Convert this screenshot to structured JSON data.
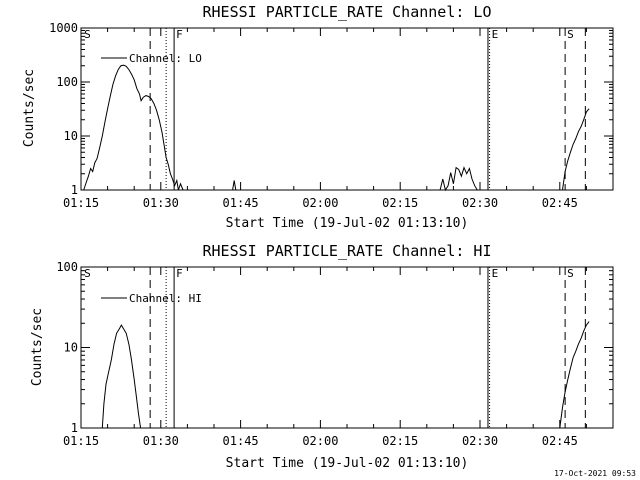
{
  "footer": {
    "timestamp": "17-Oct-2021 09:53"
  },
  "chart_data": [
    {
      "type": "line",
      "title": "RHESSI PARTICLE_RATE Channel: LO",
      "xlabel": "Start Time (19-Jul-02 01:13:10)",
      "ylabel": "Counts/sec",
      "yscale": "log",
      "ylim": [
        1,
        1000
      ],
      "y_ticks": [
        {
          "value": 1,
          "label": "1"
        },
        {
          "value": 10,
          "label": "10"
        },
        {
          "value": 100,
          "label": "100"
        },
        {
          "value": 1000,
          "label": "1000"
        }
      ],
      "xlim_minutes": [
        75,
        175
      ],
      "x_ticks": [
        {
          "value": 75,
          "label": "01:15"
        },
        {
          "value": 90,
          "label": "01:30"
        },
        {
          "value": 105,
          "label": "01:45"
        },
        {
          "value": 120,
          "label": "02:00"
        },
        {
          "value": 135,
          "label": "02:15"
        },
        {
          "value": 150,
          "label": "02:30"
        },
        {
          "value": 165,
          "label": "02:45"
        }
      ],
      "legend": {
        "label": "Channel: LO",
        "position": "top-left"
      },
      "markers": [
        {
          "x": 75.2,
          "label": "S",
          "style": "label-only"
        },
        {
          "x": 88.0,
          "label": "",
          "style": "dashed"
        },
        {
          "x": 91.0,
          "label": "",
          "style": "dotted"
        },
        {
          "x": 92.5,
          "label": "F",
          "style": "solid"
        },
        {
          "x": 151.5,
          "label": "",
          "style": "solid"
        },
        {
          "x": 151.8,
          "label": "E",
          "style": "dotted"
        },
        {
          "x": 166.0,
          "label": "S",
          "style": "dashed"
        },
        {
          "x": 169.8,
          "label": "",
          "style": "dashed"
        }
      ],
      "series": [
        {
          "name": "Channel: LO",
          "segments": [
            [
              [
                75.5,
                1
              ],
              [
                76,
                1.4
              ],
              [
                76.4,
                1.8
              ],
              [
                76.8,
                2.5
              ],
              [
                77.2,
                2.2
              ],
              [
                77.6,
                3.2
              ],
              [
                78,
                3.8
              ],
              [
                78.5,
                6
              ],
              [
                79,
                10
              ],
              [
                79.5,
                18
              ],
              [
                80,
                32
              ],
              [
                80.5,
                55
              ],
              [
                81,
                90
              ],
              [
                81.5,
                130
              ],
              [
                82,
                170
              ],
              [
                82.5,
                200
              ],
              [
                83,
                205
              ],
              [
                83.5,
                195
              ],
              [
                84,
                170
              ],
              [
                84.5,
                140
              ],
              [
                85,
                110
              ],
              [
                85.5,
                75
              ],
              [
                86,
                60
              ],
              [
                86.3,
                45
              ],
              [
                86.7,
                52
              ],
              [
                87.2,
                56
              ],
              [
                87.7,
                54
              ],
              [
                88.2,
                49
              ],
              [
                88.7,
                40
              ],
              [
                89.2,
                30
              ],
              [
                89.7,
                20
              ],
              [
                90.2,
                12
              ],
              [
                90.6,
                7
              ],
              [
                91,
                4
              ],
              [
                91.4,
                3
              ],
              [
                91.8,
                2
              ],
              [
                92.2,
                1.6
              ],
              [
                92.6,
                1.2
              ],
              [
                93,
                1.5
              ],
              [
                93.3,
                1
              ],
              [
                93.7,
                1.3
              ],
              [
                94.2,
                1
              ]
            ],
            [
              [
                103.5,
                1
              ],
              [
                103.8,
                1.5
              ],
              [
                104.1,
                1
              ]
            ],
            [
              [
                142.5,
                1
              ],
              [
                143,
                1.6
              ],
              [
                143.5,
                1
              ],
              [
                144,
                1.2
              ],
              [
                144.5,
                2.1
              ],
              [
                145,
                1.3
              ],
              [
                145.5,
                2.6
              ],
              [
                146,
                2.4
              ],
              [
                146.5,
                1.8
              ],
              [
                147,
                2.6
              ],
              [
                147.5,
                2
              ],
              [
                148,
                2.5
              ],
              [
                148.5,
                1.6
              ],
              [
                149,
                1.2
              ],
              [
                149.5,
                1
              ]
            ],
            [
              [
                165.5,
                1
              ],
              [
                166,
                2.2
              ],
              [
                166.5,
                3.5
              ],
              [
                167,
                5
              ],
              [
                167.5,
                7
              ],
              [
                168,
                9
              ],
              [
                168.5,
                12
              ],
              [
                169,
                15
              ],
              [
                169.5,
                20
              ],
              [
                170,
                28
              ],
              [
                170.5,
                32
              ]
            ]
          ]
        }
      ]
    },
    {
      "type": "line",
      "title": "RHESSI PARTICLE_RATE Channel: HI",
      "xlabel": "Start Time (19-Jul-02 01:13:10)",
      "ylabel": "Counts/sec",
      "yscale": "log",
      "ylim": [
        1,
        100
      ],
      "y_ticks": [
        {
          "value": 1,
          "label": "1"
        },
        {
          "value": 10,
          "label": "10"
        },
        {
          "value": 100,
          "label": "100"
        }
      ],
      "xlim_minutes": [
        75,
        175
      ],
      "x_ticks": [
        {
          "value": 75,
          "label": "01:15"
        },
        {
          "value": 90,
          "label": "01:30"
        },
        {
          "value": 105,
          "label": "01:45"
        },
        {
          "value": 120,
          "label": "02:00"
        },
        {
          "value": 135,
          "label": "02:15"
        },
        {
          "value": 150,
          "label": "02:30"
        },
        {
          "value": 165,
          "label": "02:45"
        }
      ],
      "legend": {
        "label": "Channel: HI",
        "position": "top-left"
      },
      "markers": [
        {
          "x": 75.2,
          "label": "S",
          "style": "label-only"
        },
        {
          "x": 88.0,
          "label": "",
          "style": "dashed"
        },
        {
          "x": 91.0,
          "label": "",
          "style": "dotted"
        },
        {
          "x": 92.5,
          "label": "F",
          "style": "solid"
        },
        {
          "x": 151.5,
          "label": "",
          "style": "solid"
        },
        {
          "x": 151.8,
          "label": "E",
          "style": "dotted"
        },
        {
          "x": 166.0,
          "label": "S",
          "style": "dashed"
        },
        {
          "x": 169.8,
          "label": "",
          "style": "dashed"
        }
      ],
      "series": [
        {
          "name": "Channel: HI",
          "segments": [
            [
              [
                79,
                1
              ],
              [
                79.3,
                2
              ],
              [
                79.7,
                3.5
              ],
              [
                80.2,
                5
              ],
              [
                80.7,
                7
              ],
              [
                81.2,
                11
              ],
              [
                81.7,
                15
              ],
              [
                82.2,
                17
              ],
              [
                82.6,
                19
              ],
              [
                83,
                17
              ],
              [
                83.5,
                15
              ],
              [
                84,
                11
              ],
              [
                84.5,
                7
              ],
              [
                85,
                4
              ],
              [
                85.4,
                2.5
              ],
              [
                85.8,
                1.5
              ],
              [
                86.2,
                1
              ]
            ],
            [
              [
                165,
                1
              ],
              [
                165.5,
                1.8
              ],
              [
                166,
                2.8
              ],
              [
                166.5,
                4
              ],
              [
                167,
                5.5
              ],
              [
                167.5,
                7.5
              ],
              [
                168,
                9
              ],
              [
                168.5,
                11
              ],
              [
                169,
                13
              ],
              [
                169.5,
                16
              ],
              [
                170,
                19
              ],
              [
                170.5,
                21
              ]
            ]
          ]
        }
      ]
    }
  ]
}
